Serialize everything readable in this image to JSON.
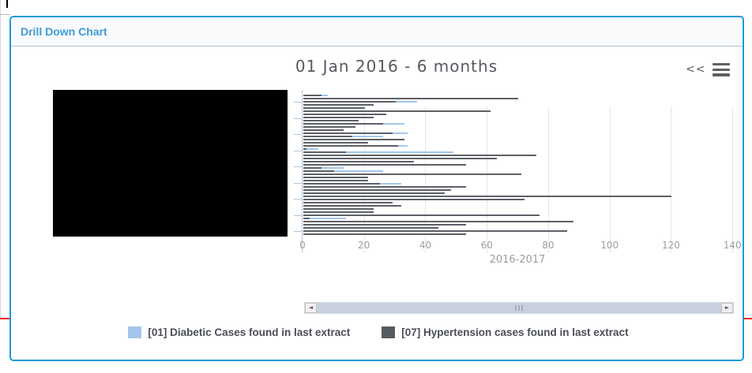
{
  "panel": {
    "header_title": "Drill Down Chart"
  },
  "chart": {
    "title": "01 Jan 2016 - 6 months",
    "collapse_label": "<<",
    "menu_icon": "hamburger-icon",
    "xlabel": "2016-2017"
  },
  "legend": {
    "items": [
      {
        "label": "[01] Diabetic Cases found in last extract",
        "color": "#a3c7ec"
      },
      {
        "label": "[07] Hypertension cases found in last extract",
        "color": "#565b62"
      }
    ]
  },
  "scrollbar": {
    "left_arrow": "◄",
    "right_arrow": "►"
  },
  "colors": {
    "panel_border": "#1d9bd8",
    "header_text": "#3d9bd6",
    "bar_hypertension": "#5d6067",
    "bar_diabetic": "#a3c7ec",
    "red_rule": "#ed1c24"
  },
  "chart_data": {
    "type": "bar",
    "orientation": "horizontal",
    "title": "01 Jan 2016 - 6 months",
    "xlabel": "2016-2017",
    "xlim": [
      0,
      140
    ],
    "x_ticks": [
      0,
      20,
      40,
      60,
      80,
      100,
      120,
      140
    ],
    "grid": true,
    "legend_position": "bottom",
    "categories_redacted": true,
    "series_names": [
      "[01] Diabetic Cases found in last extract",
      "[07] Hypertension cases found in last extract"
    ],
    "rows": [
      {
        "hypertension": 6,
        "diabetic": 8
      },
      {
        "hypertension": 70,
        "diabetic": null
      },
      {
        "hypertension": 30,
        "diabetic": 37
      },
      {
        "hypertension": 23,
        "diabetic": null
      },
      {
        "hypertension": 20,
        "diabetic": null
      },
      {
        "hypertension": 61,
        "diabetic": null
      },
      {
        "hypertension": 27,
        "diabetic": null
      },
      {
        "hypertension": 23,
        "diabetic": null
      },
      {
        "hypertension": 18,
        "diabetic": null
      },
      {
        "hypertension": 26,
        "diabetic": 33
      },
      {
        "hypertension": 17,
        "diabetic": null
      },
      {
        "hypertension": 13,
        "diabetic": null
      },
      {
        "hypertension": 29,
        "diabetic": 34
      },
      {
        "hypertension": 16,
        "diabetic": 26
      },
      {
        "hypertension": 33,
        "diabetic": null
      },
      {
        "hypertension": 21,
        "diabetic": null
      },
      {
        "hypertension": 31,
        "diabetic": 34
      },
      {
        "hypertension": 1,
        "diabetic": 5
      },
      {
        "hypertension": 14,
        "diabetic": 49
      },
      {
        "hypertension": 76,
        "diabetic": null
      },
      {
        "hypertension": 63,
        "diabetic": null
      },
      {
        "hypertension": 36,
        "diabetic": null
      },
      {
        "hypertension": 53,
        "diabetic": null
      },
      {
        "hypertension": 6,
        "diabetic": 13
      },
      {
        "hypertension": 10,
        "diabetic": 26
      },
      {
        "hypertension": 71,
        "diabetic": null
      },
      {
        "hypertension": 21,
        "diabetic": null
      },
      {
        "hypertension": 21,
        "diabetic": null
      },
      {
        "hypertension": 25,
        "diabetic": 32
      },
      {
        "hypertension": 53,
        "diabetic": null
      },
      {
        "hypertension": 48,
        "diabetic": null
      },
      {
        "hypertension": 46,
        "diabetic": null
      },
      {
        "hypertension": 120,
        "diabetic": null
      },
      {
        "hypertension": 72,
        "diabetic": null
      },
      {
        "hypertension": 29,
        "diabetic": null
      },
      {
        "hypertension": 32,
        "diabetic": null
      },
      {
        "hypertension": 23,
        "diabetic": null
      },
      {
        "hypertension": 23,
        "diabetic": null
      },
      {
        "hypertension": 77,
        "diabetic": null
      },
      {
        "hypertension": 2,
        "diabetic": 14
      },
      {
        "hypertension": 88,
        "diabetic": null
      },
      {
        "hypertension": 53,
        "diabetic": null
      },
      {
        "hypertension": 44,
        "diabetic": null
      },
      {
        "hypertension": 86,
        "diabetic": null
      },
      {
        "hypertension": 53,
        "diabetic": null
      }
    ]
  }
}
